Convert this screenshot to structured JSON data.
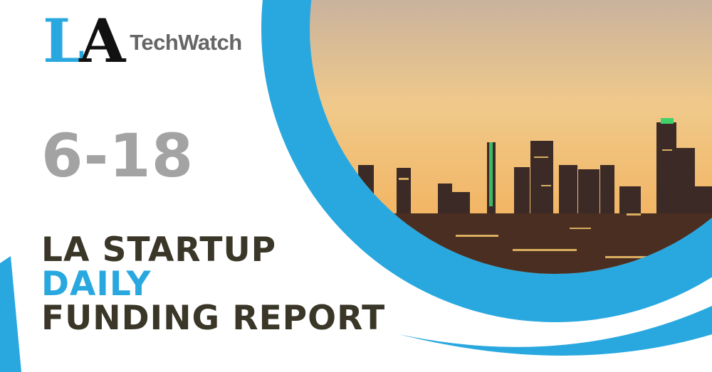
{
  "logo": {
    "prefix_l": "L",
    "prefix_a": "A",
    "name": "TechWatch"
  },
  "date": "6-18",
  "title": {
    "line1": "LA STARTUP",
    "line2": "DAILY",
    "line3": "FUNDING REPORT"
  },
  "colors": {
    "accent_blue": "#29a8e0",
    "title_dark": "#3a3628",
    "date_gray": "#a3a3a3"
  },
  "image": {
    "subject": "skyline-photo"
  }
}
